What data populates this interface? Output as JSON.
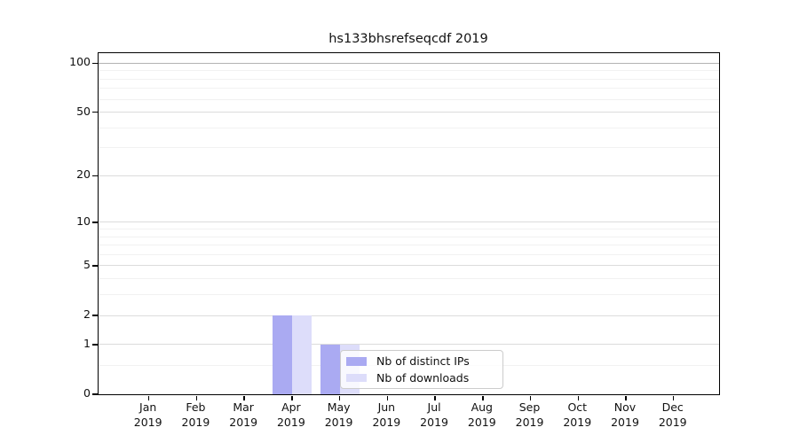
{
  "title": "hs133bhsrefseqcdf 2019",
  "colors": {
    "bar_distinct_ips": "#aaaaf2",
    "bar_downloads": "#ddddfa",
    "grid_major": "#dcdcdc",
    "grid_minor": "#f1f1f1",
    "grid_top_decade": "#b3b3b3",
    "spine": "#000000",
    "legend_border": "#cccccc",
    "background": "#ffffff"
  },
  "chart_data": {
    "type": "bar",
    "title": "hs133bhsrefseqcdf 2019",
    "categories": [
      "Jan 2019",
      "Feb 2019",
      "Mar 2019",
      "Apr 2019",
      "May 2019",
      "Jun 2019",
      "Jul 2019",
      "Aug 2019",
      "Sep 2019",
      "Oct 2019",
      "Nov 2019",
      "Dec 2019"
    ],
    "series": [
      {
        "name": "Nb of distinct IPs",
        "color": "#aaaaf2",
        "values": [
          0,
          0,
          0,
          2,
          1,
          0,
          0,
          0,
          0,
          0,
          0,
          0
        ]
      },
      {
        "name": "Nb of downloads",
        "color": "#ddddfa",
        "values": [
          0,
          0,
          0,
          2,
          1,
          0,
          0,
          0,
          0,
          0,
          0,
          0
        ]
      }
    ],
    "xlabel": "",
    "ylabel": "",
    "yscale": "log1p",
    "ylim": [
      0,
      115
    ],
    "yticks": [
      0,
      1,
      2,
      5,
      10,
      20,
      50,
      100
    ],
    "minor_yticks": [
      0.5,
      3,
      4,
      6,
      7,
      8,
      9,
      30,
      40,
      60,
      70,
      80,
      90
    ],
    "grid": true,
    "legend_position": "inside lower center-left"
  },
  "legend": {
    "items": [
      {
        "label": "Nb of distinct IPs",
        "swatch": "#aaaaf2"
      },
      {
        "label": "Nb of downloads",
        "swatch": "#ddddfa"
      }
    ]
  }
}
